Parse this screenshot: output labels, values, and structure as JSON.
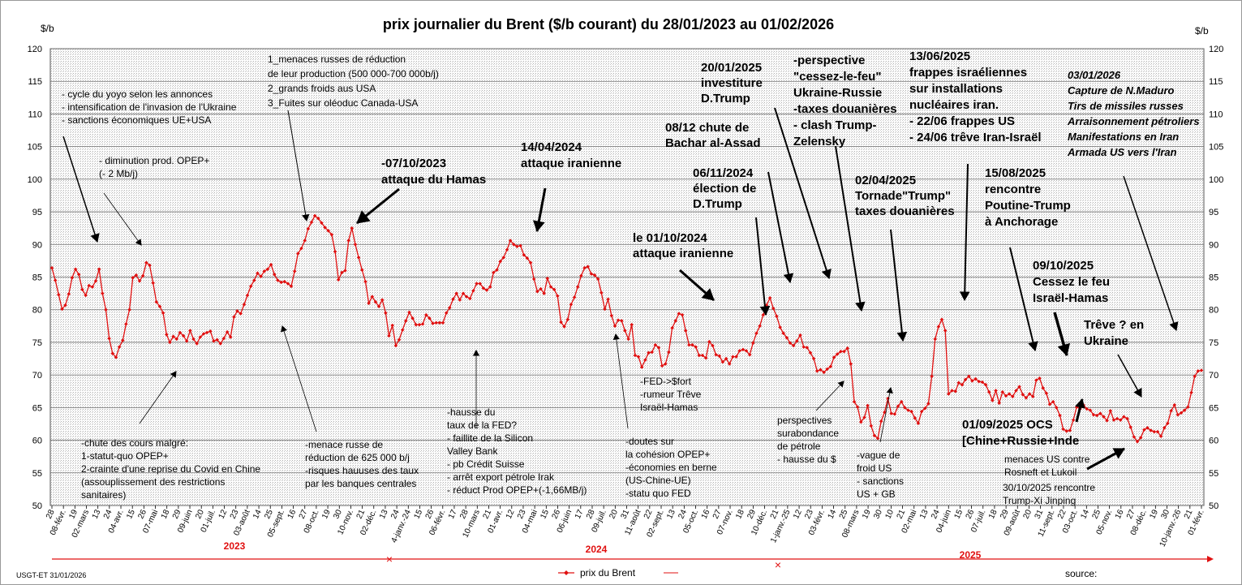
{
  "chart_data": {
    "type": "line",
    "title": "prix  journalier du  Brent ($/b courant) du 28/01/2023 au  01/02/2026",
    "ylabel_left": "$/b",
    "ylabel_right": "$/b",
    "ylim": [
      50,
      120
    ],
    "yticks": [
      50,
      55,
      60,
      65,
      70,
      75,
      80,
      85,
      90,
      95,
      100,
      105,
      110,
      115,
      120
    ],
    "grid": true,
    "xtick_labels": [
      "28",
      "08-févr.",
      "19",
      "02-mars",
      "13",
      "24",
      "04-avr.",
      "15",
      "26",
      "07-mai",
      "18",
      "29",
      "09-juin",
      "20",
      "01-juil.",
      "12",
      "23",
      "03-août",
      "14",
      "25",
      "05-sept.",
      "16",
      "27",
      "08-oct.",
      "19",
      "30",
      "10-nov.",
      "21",
      "02-déc.",
      "13",
      "24",
      "4-janv.-24",
      "15",
      "26",
      "06-févr.",
      "17",
      "28",
      "10-mars",
      "21",
      "01-avr.",
      "12",
      "23",
      "04-mai",
      "15",
      "26",
      "06-juin",
      "17",
      "28",
      "09-juil.",
      "20",
      "31",
      "11-août",
      "22",
      "02-sept.",
      "13",
      "24",
      "05-oct.",
      "16",
      "27",
      "07-nov.",
      "18",
      "29",
      "10-déc.",
      "21",
      "1-janv.-25",
      "12",
      "23",
      "03-févr.",
      "14",
      "25",
      "08-mars",
      "19",
      "30",
      "10",
      "21",
      "02-mai",
      "13",
      "24",
      "04-juin",
      "15",
      "26",
      "07-juil.",
      "18",
      "29",
      "09-août",
      "20",
      "31",
      "11-sept.",
      "22",
      "03-oct.",
      "14",
      "25",
      "05-nov.",
      "16",
      "27",
      "08-déc.",
      "19",
      "30",
      "10-janv.-26",
      "21",
      "01-févr."
    ],
    "years": [
      "2023",
      "2024",
      "2025"
    ],
    "legend": "prix du Brent",
    "source_label": "source:",
    "credit": "USGT-ET  31/01/2026",
    "series": [
      {
        "name": "prix du Brent",
        "values": [
          86.4,
          84.5,
          82.3,
          80.1,
          80.7,
          82.4,
          84.9,
          86.2,
          85.4,
          83.1,
          82.2,
          83.7,
          83.5,
          84.4,
          86.2,
          82.5,
          80.0,
          75.6,
          73.3,
          72.7,
          74.3,
          75.3,
          77.8,
          80.0,
          84.9,
          85.3,
          84.4,
          85.2,
          87.2,
          86.8,
          84.1,
          81.2,
          80.5,
          79.5,
          76.2,
          75.0,
          75.9,
          75.5,
          76.5,
          76.0,
          75.2,
          76.8,
          75.5,
          74.8,
          75.8,
          76.3,
          76.5,
          76.7,
          75.2,
          75.4,
          74.8,
          75.6,
          76.6,
          75.8,
          78.9,
          79.8,
          79.4,
          80.8,
          82.2,
          83.6,
          84.5,
          85.6,
          85.1,
          85.9,
          86.2,
          86.9,
          85.4,
          84.5,
          84.2,
          84.3,
          84.0,
          83.6,
          85.9,
          88.6,
          89.4,
          90.6,
          92.4,
          93.4,
          94.4,
          94.0,
          93.3,
          92.6,
          92.1,
          91.5,
          88.9,
          84.6,
          85.7,
          86.0,
          90.6,
          92.5,
          90.0,
          88.0,
          86.1,
          84.3,
          81.0,
          82.0,
          81.2,
          80.5,
          81.5,
          79.5,
          76.0,
          77.6,
          74.5,
          75.4,
          76.9,
          78.3,
          79.6,
          78.7,
          77.7,
          77.7,
          77.8,
          79.2,
          78.7,
          77.9,
          78.0,
          78.0,
          78.0,
          79.5,
          80.3,
          81.6,
          82.5,
          81.5,
          82.5,
          82.0,
          81.7,
          82.9,
          84.0,
          84.0,
          83.3,
          83.0,
          83.5,
          85.7,
          86.1,
          87.4,
          88.0,
          89.2,
          90.6,
          90.0,
          89.7,
          89.8,
          88.4,
          87.9,
          87.2,
          84.7,
          82.8,
          83.2,
          82.5,
          84.8,
          83.5,
          83.1,
          82.1,
          78.1,
          77.4,
          78.5,
          80.8,
          81.9,
          83.5,
          85.2,
          86.4,
          86.6,
          85.5,
          85.3,
          84.7,
          82.6,
          80.1,
          81.6,
          79.1,
          77.5,
          78.4,
          78.3,
          76.8,
          75.5,
          77.7,
          73.0,
          72.8,
          71.2,
          72.3,
          73.4,
          73.5,
          74.6,
          74.2,
          71.4,
          71.7,
          73.5,
          77.2,
          78.3,
          79.4,
          79.2,
          76.8,
          74.6,
          74.6,
          74.3,
          73.0,
          73.0,
          72.6,
          75.1,
          74.5,
          73.1,
          72.9,
          72.0,
          72.5,
          71.7,
          72.8,
          72.8,
          73.7,
          73.9,
          73.7,
          73.1,
          74.9,
          76.4,
          77.5,
          79.2,
          80.7,
          81.8,
          80.2,
          79.0,
          77.3,
          76.4,
          75.7,
          74.9,
          74.5,
          75.2,
          76.1,
          74.3,
          74.2,
          73.4,
          72.5,
          70.6,
          70.8,
          70.4,
          70.9,
          71.3,
          72.7,
          73.2,
          73.6,
          73.6,
          74.1,
          71.7,
          65.9,
          65.1,
          62.8,
          63.5,
          65.3,
          62.2,
          60.7,
          60.3,
          62.9,
          64.3,
          66.4,
          64.1,
          64.0,
          65.2,
          65.9,
          65.0,
          64.6,
          64.4,
          63.4,
          62.6,
          64.4,
          64.9,
          65.6,
          69.8,
          75.5,
          77.4,
          78.5,
          76.8,
          67.1,
          67.6,
          67.5,
          68.8,
          68.5,
          69.3,
          69.8,
          69.1,
          69.4,
          69.0,
          68.9,
          68.5,
          67.4,
          66.1,
          67.6,
          65.7,
          67.4,
          66.8,
          67.1,
          66.7,
          67.6,
          68.2,
          67.0,
          66.5,
          67.1,
          66.7,
          69.2,
          69.5,
          68.0,
          67.2,
          65.5,
          65.9,
          65.0,
          63.8,
          61.7,
          61.4,
          61.5,
          63.1,
          65.1,
          64.8,
          65.4,
          64.8,
          64.6,
          63.9,
          63.8,
          64.1,
          63.6,
          63.0,
          64.5,
          63.1,
          63.3,
          63.1,
          63.6,
          63.3,
          62.0,
          60.5,
          59.8,
          60.4,
          61.6,
          61.9,
          61.5,
          61.3,
          61.3,
          60.6,
          61.9,
          62.6,
          64.5,
          65.4,
          63.9,
          64.2,
          64.6,
          65.1,
          67.3,
          69.8,
          70.6,
          70.7
        ]
      }
    ]
  },
  "annotations": {
    "a1": [
      "- cycle du yoyo selon les annonces",
      "- intensification de l'invasion de l'Ukraine",
      "- sanctions économiques UE+USA"
    ],
    "a2": [
      "- diminution prod. OPEP+",
      "(- 2 Mb/j)"
    ],
    "a3": [
      "1_menaces russes de réduction",
      "de leur production (500 000-700 000b/j)",
      "2_grands froids aus USA",
      "3_Fuites sur oléoduc Canada-USA"
    ],
    "a4": [
      "-07/10/2023",
      "attaque  du Hamas"
    ],
    "a5": [
      "14/04/2024",
      "attaque iranienne"
    ],
    "a6": [
      "20/01/2025",
      "investiture",
      "D.Trump"
    ],
    "a7": [
      "08/12 chute de",
      "Bachar al-Assad"
    ],
    "a8": [
      "06/11/2024",
      "élection de",
      "D.Trump"
    ],
    "a9": [
      "-perspective",
      "\"cessez-le-feu\"",
      "Ukraine-Russie",
      "-taxes douanières",
      "- clash Trump-",
      "Zelensky"
    ],
    "a10": [
      "13/06/2025",
      "frappes  israéliennes",
      "sur installations",
      "nucléaires iran.",
      "- 22/06 frappes US",
      "- 24/06 trêve Iran-Israël"
    ],
    "a11": [
      "03/01/2026",
      "Capture de N.Maduro",
      "Tirs de missiles russes",
      "Arraisonnement pétroliers",
      "Manifestations en Iran",
      "Armada US vers  l'Iran"
    ],
    "a12": [
      "02/04/2025",
      "Tornade\"Trump\"",
      "taxes douanières"
    ],
    "a13": [
      "15/08/2025",
      "rencontre",
      "Poutine-Trump",
      "à Anchorage"
    ],
    "a14": [
      "le 01/10/2024",
      "attaque iranienne"
    ],
    "a15": [
      "09/10/2025",
      "Cessez le feu",
      "Israël-Hamas"
    ],
    "a16": [
      "Trêve ? en",
      "Ukraine"
    ],
    "a17": [
      "-chute des cours malgré:",
      "1-statut-quo OPEP+",
      "2-crainte d'une reprise du Covid en Chine",
      "(assouplissement des restrictions",
      "sanitaires)"
    ],
    "a18": [
      "-menace russe de",
      "réduction de 625 000 b/j",
      "-risques hauuses des taux",
      "par les banques centrales"
    ],
    "a19": [
      "-hausse du",
      "taux de la FED?",
      "- faillite de la Silicon",
      "Valley Bank",
      "- pb Crédit Suisse",
      "- arrêt export pétrole Irak",
      "- réduct Prod OPEP+(-1,66MB/j)"
    ],
    "a20": [
      "-doutes sur",
      "la cohésion  OPEP+",
      "-économies en berne",
      "(US-Chine-UE)",
      "-statu quo FED"
    ],
    "a21": [
      "-FED->$fort",
      "-rumeur Trêve",
      "Israël-Hamas"
    ],
    "a22": [
      "perspectives",
      "surabondance",
      "de pétrole",
      "- hausse du $"
    ],
    "a23": [
      "-vague de",
      "froid US",
      "- sanctions",
      "US + GB"
    ],
    "a24": [
      "01/09/2025 OCS",
      "[Chine+Russie+Inde"
    ],
    "a25": [
      "menaces US contre",
      "Rosneft et Lukoil"
    ],
    "a26": [
      "30/10/2025  rencontre",
      "Trump-Xi Jinping"
    ]
  },
  "colors": {
    "series": "#e01010",
    "axis_red": "#e01010",
    "grid": "#777777",
    "hatch": "#b8b8b8"
  }
}
